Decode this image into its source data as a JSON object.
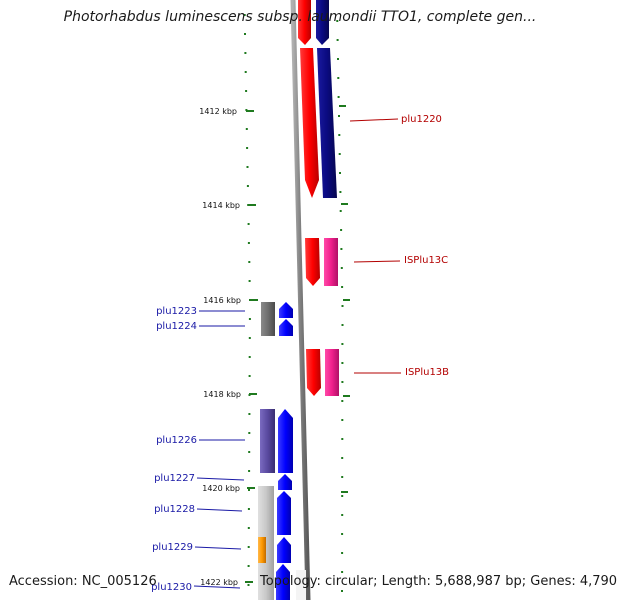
{
  "title": "Photorhabdus luminescens subsp. laumondii TTO1, complete gen...",
  "footer": {
    "accession": "Accession: NC_005126",
    "summary": "Topology: circular; Length: 5,688,987 bp; Genes: 4,790"
  },
  "ruler": {
    "ticks": [
      "1412 kbp",
      "1414 kbp",
      "1416 kbp",
      "1418 kbp",
      "1420 kbp",
      "1422 kbp"
    ]
  },
  "genes_left": [
    "plu1223",
    "plu1224",
    "plu1226",
    "plu1227",
    "plu1228",
    "plu1229",
    "plu1230"
  ],
  "genes_right": [
    "plu1220",
    "ISPlu13C",
    "ISPlu13B"
  ],
  "colors": {
    "backbone": "#8c8c8c",
    "tick": "#1f7a1f",
    "left_label": "#1a1aa6",
    "right_label": "#b30000",
    "red": "#ff0000",
    "navy": "#0a0a7a",
    "pink": "#f0208c",
    "blue": "#0000ff",
    "purple": "#5a4aa0",
    "gray": "#6e6e6e",
    "lightgray": "#c8c8c8",
    "orange": "#ff9900"
  }
}
